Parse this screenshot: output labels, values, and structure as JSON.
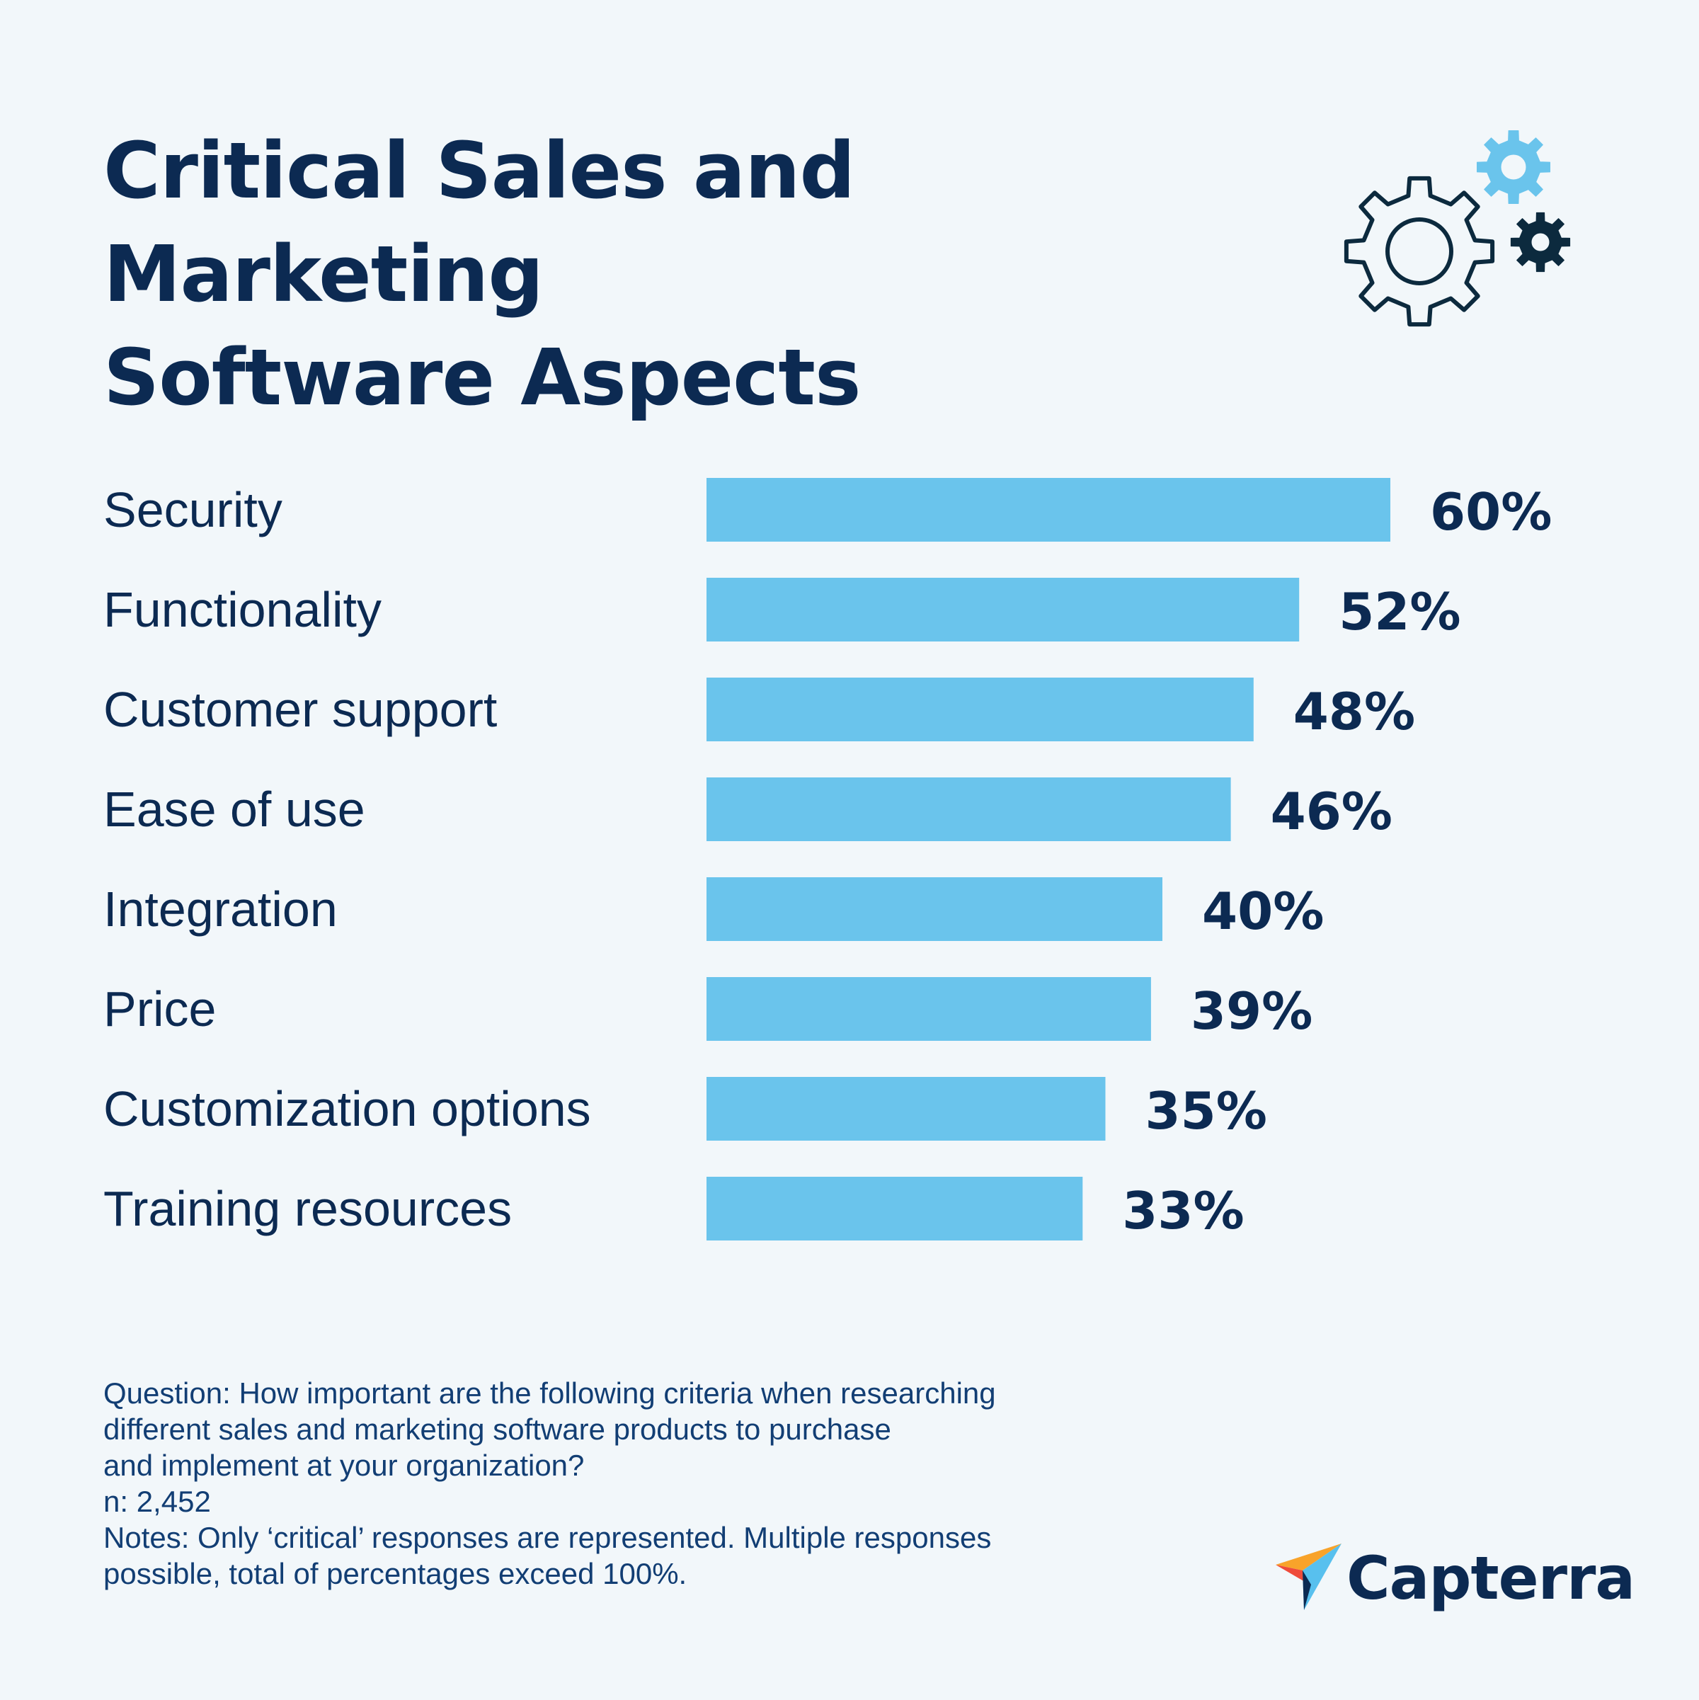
{
  "title": {
    "line1": "Critical Sales and Marketing",
    "line2": "Software Aspects"
  },
  "icons": {
    "large_gear": "gear-outline-icon",
    "small_gear_light": "gear-light-blue-icon",
    "small_gear_dark": "gear-dark-icon"
  },
  "chart_data": {
    "type": "bar",
    "orientation": "horizontal",
    "title": "Critical Sales and Marketing Software Aspects",
    "categories": [
      "Security",
      "Functionality",
      "Customer support",
      "Ease of use",
      "Integration",
      "Price",
      "Customization options",
      "Training resources"
    ],
    "values": [
      60,
      52,
      48,
      46,
      40,
      39,
      35,
      33
    ],
    "value_labels": [
      "60%",
      "52%",
      "48%",
      "46%",
      "40%",
      "39%",
      "35%",
      "33%"
    ],
    "unit": "%",
    "xlim": [
      0,
      100
    ],
    "xlabel": "",
    "ylabel": "",
    "grid": false,
    "legend": "none"
  },
  "colors": {
    "background": "#f2f7fa",
    "bar": "#6ac4ec",
    "text": "#0c2a52",
    "footnote": "#123e74",
    "gear_light": "#6ac4ec",
    "gear_dark": "#0c2a3e",
    "logo_orange": "#f8a32a",
    "logo_red": "#ef4b3b",
    "logo_blue": "#58c0ee",
    "logo_navy": "#0c2a52"
  },
  "footnote": {
    "line1": "Question: How important are the following criteria when researching",
    "line2": "different sales and marketing software products to purchase",
    "line3": "and implement at your organization?",
    "line4": "n: 2,452",
    "line5": "Notes: Only ‘critical’ responses are represented. Multiple responses",
    "line6": "possible, total of percentages exceed 100%."
  },
  "logo": {
    "name": "Capterra"
  }
}
